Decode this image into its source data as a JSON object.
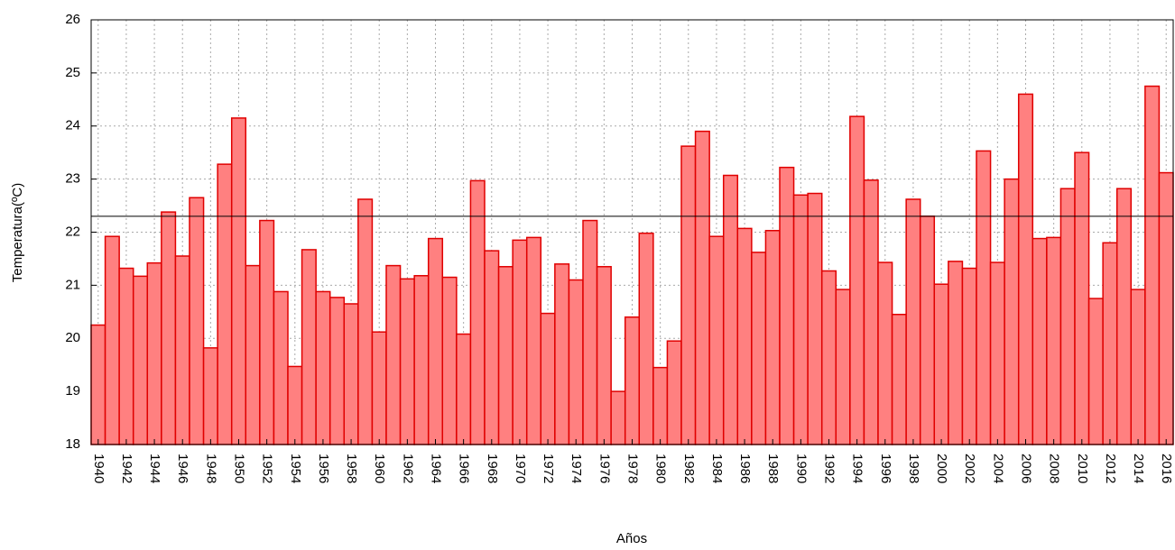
{
  "chart_data": {
    "type": "bar",
    "ylabel": "Temperatura(ºC)",
    "xlabel": "Años",
    "categories": [
      "1940",
      null,
      "1942",
      null,
      "1944",
      null,
      "1946",
      null,
      "1948",
      null,
      "1950",
      null,
      "1952",
      null,
      "1954",
      null,
      "1956",
      null,
      "1958",
      null,
      "1960",
      null,
      "1962",
      null,
      "1964",
      null,
      "1966",
      null,
      "1968",
      null,
      "1970",
      null,
      "1972",
      null,
      "1974",
      null,
      "1976",
      null,
      "1978",
      null,
      "1980",
      null,
      "1982",
      null,
      "1984",
      null,
      "1986",
      null,
      "1988",
      null,
      "1990",
      null,
      "1992",
      null,
      "1994",
      null,
      "1996",
      null,
      "1998",
      null,
      "2000",
      null,
      "2002",
      null,
      "2004",
      null,
      "2006",
      null,
      "2008",
      null,
      "2010",
      null,
      "2012",
      null,
      "2014",
      null,
      "2016"
    ],
    "values": [
      20.25,
      21.92,
      21.32,
      21.17,
      21.42,
      22.38,
      21.55,
      22.65,
      19.82,
      23.28,
      24.15,
      21.37,
      22.22,
      20.88,
      19.47,
      21.67,
      20.88,
      20.77,
      20.65,
      22.62,
      20.12,
      21.37,
      21.12,
      21.18,
      21.88,
      21.15,
      20.08,
      22.97,
      21.65,
      21.35,
      21.85,
      21.9,
      20.47,
      21.4,
      21.1,
      22.22,
      21.35,
      19.0,
      20.4,
      21.98,
      19.45,
      19.95,
      23.62,
      23.9,
      21.92,
      23.07,
      22.07,
      21.62,
      22.03,
      23.22,
      22.7,
      22.73,
      21.27,
      20.92,
      24.18,
      22.98,
      21.43,
      20.45,
      22.62,
      22.3,
      21.02,
      21.45,
      21.32,
      23.53,
      21.43,
      23.0,
      24.6,
      21.88,
      21.9,
      22.82,
      23.5,
      20.75,
      21.8,
      22.82,
      20.92,
      24.75,
      23.12
    ],
    "color": "#ff8080",
    "edge_color": "#e00000",
    "reference_line": 22.3,
    "ylim": [
      18,
      26
    ],
    "yticks": [
      18,
      19,
      20,
      21,
      22,
      23,
      24,
      25,
      26
    ],
    "grid": true
  }
}
